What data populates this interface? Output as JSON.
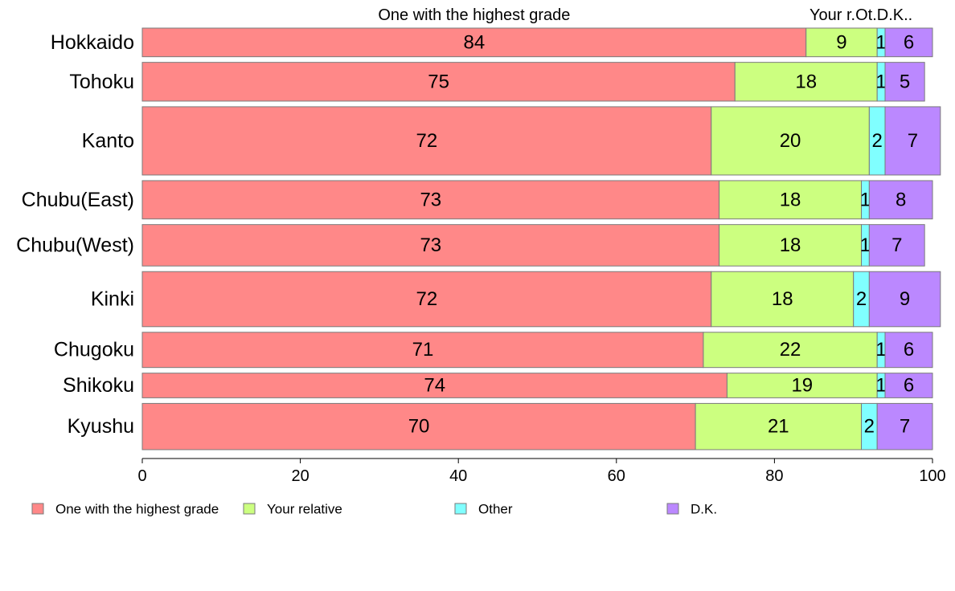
{
  "chart_data": {
    "type": "bar",
    "orientation": "horizontal",
    "stacked": true,
    "categories": [
      "Hokkaido",
      "Tohoku",
      "Kanto",
      "Chubu(East)",
      "Chubu(West)",
      "Kinki",
      "Chugoku",
      "Shikoku",
      "Kyushu"
    ],
    "series": [
      {
        "name": "One with the highest grade",
        "short_label": "One with the highest grade",
        "color": "#ff8888",
        "values": [
          84,
          75,
          72,
          73,
          73,
          72,
          71,
          74,
          70
        ]
      },
      {
        "name": "Your relative",
        "short_label": "Your r.",
        "color": "#ccff80",
        "values": [
          9,
          18,
          20,
          18,
          18,
          18,
          22,
          19,
          21
        ]
      },
      {
        "name": "Other",
        "short_label": "Ot.",
        "color": "#80ffff",
        "values": [
          1,
          1,
          2,
          1,
          1,
          2,
          1,
          1,
          2
        ]
      },
      {
        "name": "D.K.",
        "short_label": "D.K..",
        "color": "#bb88ff",
        "values": [
          6,
          5,
          7,
          8,
          7,
          9,
          6,
          6,
          7
        ]
      }
    ],
    "xlim": [
      0,
      100
    ],
    "xticks": [
      0,
      20,
      40,
      60,
      80,
      100
    ],
    "row_weights": [
      0.065,
      0.088,
      0.155,
      0.087,
      0.094,
      0.125,
      0.08,
      0.056,
      0.105
    ],
    "grid": false,
    "legend_position": "bottom"
  }
}
